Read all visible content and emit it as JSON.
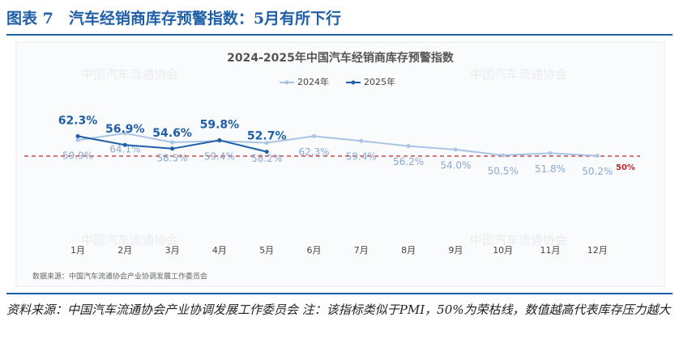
{
  "header": {
    "title": "图表 7　汽车经销商库存预警指数：5月有所下行"
  },
  "chart_data": {
    "type": "line",
    "title": "2024-2025年中国汽车经销商库存预警指数",
    "watermark": "中国汽车流通协会",
    "categories": [
      "1月",
      "2月",
      "3月",
      "4月",
      "5月",
      "6月",
      "7月",
      "8月",
      "9月",
      "10月",
      "11月",
      "12月"
    ],
    "series": [
      {
        "name": "2024年",
        "color": "#a9c4e4",
        "values": [
          59.9,
          64.1,
          58.5,
          59.4,
          58.2,
          62.3,
          59.4,
          56.2,
          54.0,
          50.5,
          51.8,
          50.2
        ],
        "value_labels": [
          "59.9%",
          "64.1%",
          "58.5%",
          "59.4%",
          "58.2%",
          "62.3%",
          "59.4%",
          "56.2%",
          "54.0%",
          "50.5%",
          "51.8%",
          "50.2%"
        ]
      },
      {
        "name": "2025年",
        "color": "#1f5fa8",
        "values": [
          62.3,
          56.9,
          54.6,
          59.8,
          52.7,
          null,
          null,
          null,
          null,
          null,
          null,
          null
        ],
        "value_labels": [
          "62.3%",
          "56.9%",
          "54.6%",
          "59.8%",
          "52.7%",
          null,
          null,
          null,
          null,
          null,
          null,
          null
        ]
      }
    ],
    "ylim": [
      0,
      100
    ],
    "reference_line": {
      "value": 50,
      "label": "50%",
      "color": "#c0272d"
    },
    "source": "数据来源：中国汽车流通协会产业协调发展工作委员会"
  },
  "footnote": "资料来源：中国汽车流通协会产业协调发展工作委员会 注：该指标类似于PMI，50%为荣枯线，数值越高代表库存压力越大"
}
